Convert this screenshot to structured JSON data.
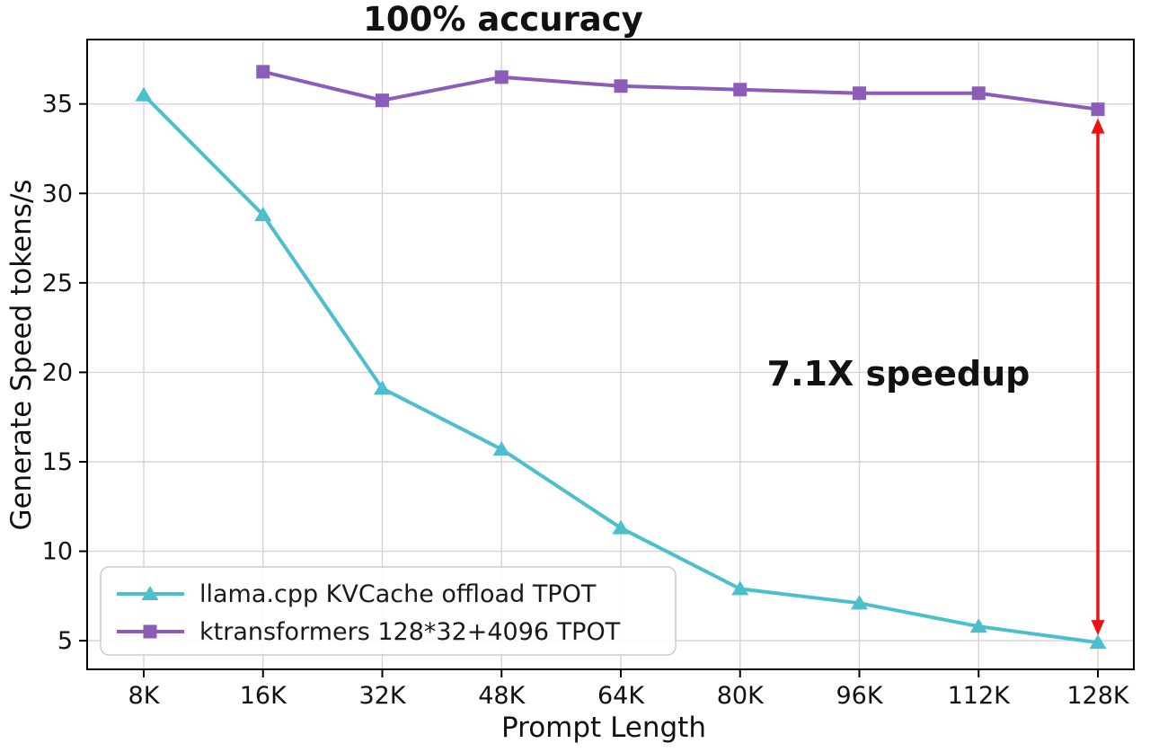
{
  "chart_data": {
    "type": "line",
    "title": "100% accuracy",
    "xlabel": "Prompt Length",
    "ylabel": "Generate Speed tokens/s",
    "categories": [
      "8K",
      "16K",
      "32K",
      "48K",
      "64K",
      "80K",
      "96K",
      "112K",
      "128K"
    ],
    "series": [
      {
        "name": "llama.cpp KVCache offload TPOT",
        "color": "#4cbfcc",
        "marker": "triangle",
        "values": [
          35.5,
          28.8,
          19.1,
          15.7,
          11.3,
          7.9,
          7.1,
          5.8,
          4.9
        ]
      },
      {
        "name": "ktransformers 128*32+4096 TPOT",
        "color": "#8b5cb8",
        "marker": "square",
        "values": [
          null,
          36.8,
          35.2,
          36.5,
          36.0,
          35.8,
          35.6,
          35.6,
          34.7
        ]
      }
    ],
    "ylim": [
      3.4,
      38.6
    ],
    "yticks": [
      5,
      10,
      15,
      20,
      25,
      30,
      35
    ],
    "grid": true,
    "legend_position": "lower left",
    "annotations": {
      "speedup_label": "7.1X speedup",
      "accent_color": "#ee1111",
      "arrow": {
        "x_category": "128K",
        "y_top": 34.2,
        "y_bottom": 5.3
      }
    }
  }
}
